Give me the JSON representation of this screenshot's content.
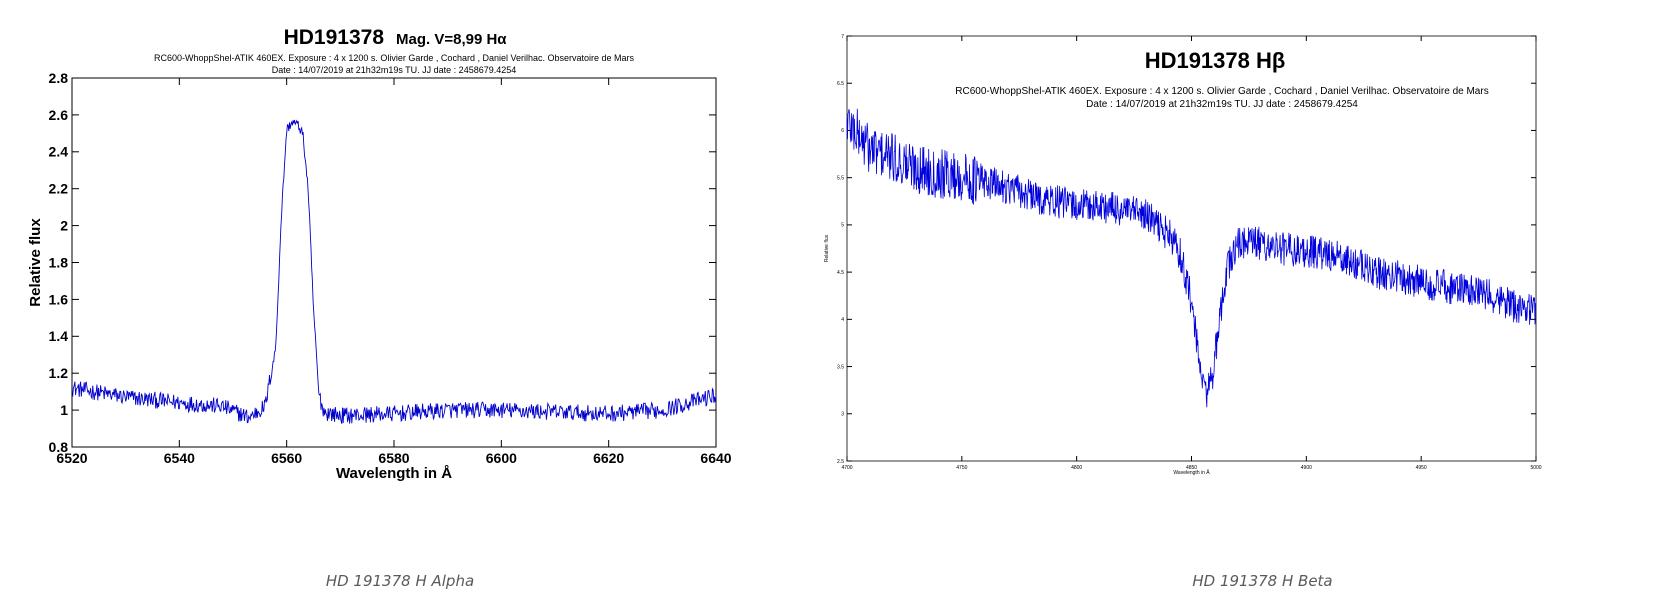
{
  "chart_data": [
    {
      "type": "line",
      "title": "HD191378",
      "title_suffix": "Mag. V=8,99 Hα",
      "subtitle_line1": "RC600-WhoppShel-ATIK 460EX. Exposure : 4 x 1200 s. Olivier Garde , Cochard , Daniel Verilhac. Observatoire de Mars",
      "subtitle_line2": "Date : 14/07/2019 at 21h32m19s TU. JJ date : 2458679.4254",
      "xlabel": "Wavelength in Å",
      "ylabel": "Relative flux",
      "xlim": [
        6520,
        6640
      ],
      "ylim": [
        0.8,
        2.8
      ],
      "xticks": [
        "6520",
        "6540",
        "6560",
        "6580",
        "6600",
        "6620",
        "6640"
      ],
      "yticks": [
        "0.8",
        "1",
        "1.2",
        "1.4",
        "1.6",
        "1.8",
        "2",
        "2.2",
        "2.4",
        "2.6",
        "2.8"
      ],
      "grid": false,
      "series_color": "#0000cc",
      "series": [
        {
          "x": [
            6520,
            6530,
            6540,
            6548,
            6553,
            6556,
            6558,
            6559,
            6560,
            6561,
            6562,
            6563,
            6564,
            6565,
            6566,
            6567,
            6570,
            6580,
            6590,
            6600,
            6610,
            6620,
            6630,
            6640
          ],
          "y": [
            1.12,
            1.07,
            1.04,
            1.02,
            0.96,
            1.02,
            1.35,
            2.05,
            2.52,
            2.56,
            2.55,
            2.5,
            2.2,
            1.55,
            1.08,
            0.99,
            0.97,
            0.98,
            1.0,
            1.0,
            0.99,
            0.98,
            1.0,
            1.08
          ]
        }
      ]
    },
    {
      "type": "line",
      "title": "HD191378 Hβ",
      "subtitle_line1": "RC600-WhoppShel-ATIK 460EX. Exposure : 4 x 1200 s. Olivier Garde , Cochard , Daniel Verilhac. Observatoire de Mars",
      "subtitle_line2": "Date : 14/07/2019 at 21h32m19s TU. JJ date : 2458679.4254",
      "xlabel": "Wavelength in Å",
      "ylabel": "Relative flux",
      "xlim": [
        4700,
        5000
      ],
      "ylim": [
        2.5,
        7
      ],
      "xticks": [
        "4700",
        "4750",
        "4800",
        "4850",
        "4900",
        "4950",
        "5000"
      ],
      "yticks": [
        "2.5",
        "3",
        "3.5",
        "4",
        "4.5",
        "5",
        "5.5",
        "6",
        "6.5",
        "7"
      ],
      "grid": false,
      "series_color": "#0000dd",
      "series": [
        {
          "x": [
            4700,
            4710,
            4720,
            4730,
            4740,
            4750,
            4760,
            4770,
            4780,
            4790,
            4800,
            4810,
            4820,
            4830,
            4835,
            4840,
            4845,
            4850,
            4853,
            4856,
            4859,
            4862,
            4865,
            4870,
            4875,
            4880,
            4890,
            4900,
            4910,
            4920,
            4930,
            4940,
            4950,
            4960,
            4970,
            4980,
            4990,
            5000
          ],
          "y": [
            6.1,
            5.8,
            5.7,
            5.6,
            5.55,
            5.5,
            5.45,
            5.4,
            5.3,
            5.25,
            5.2,
            5.2,
            5.15,
            5.1,
            5.0,
            4.9,
            4.7,
            4.2,
            3.6,
            3.2,
            3.4,
            3.9,
            4.5,
            4.8,
            4.82,
            4.8,
            4.75,
            4.72,
            4.68,
            4.6,
            4.5,
            4.45,
            4.4,
            4.35,
            4.3,
            4.25,
            4.15,
            4.1
          ]
        }
      ]
    }
  ],
  "captions": {
    "left": "HD 191378 H Alpha",
    "right": "HD 191378 H Beta"
  }
}
